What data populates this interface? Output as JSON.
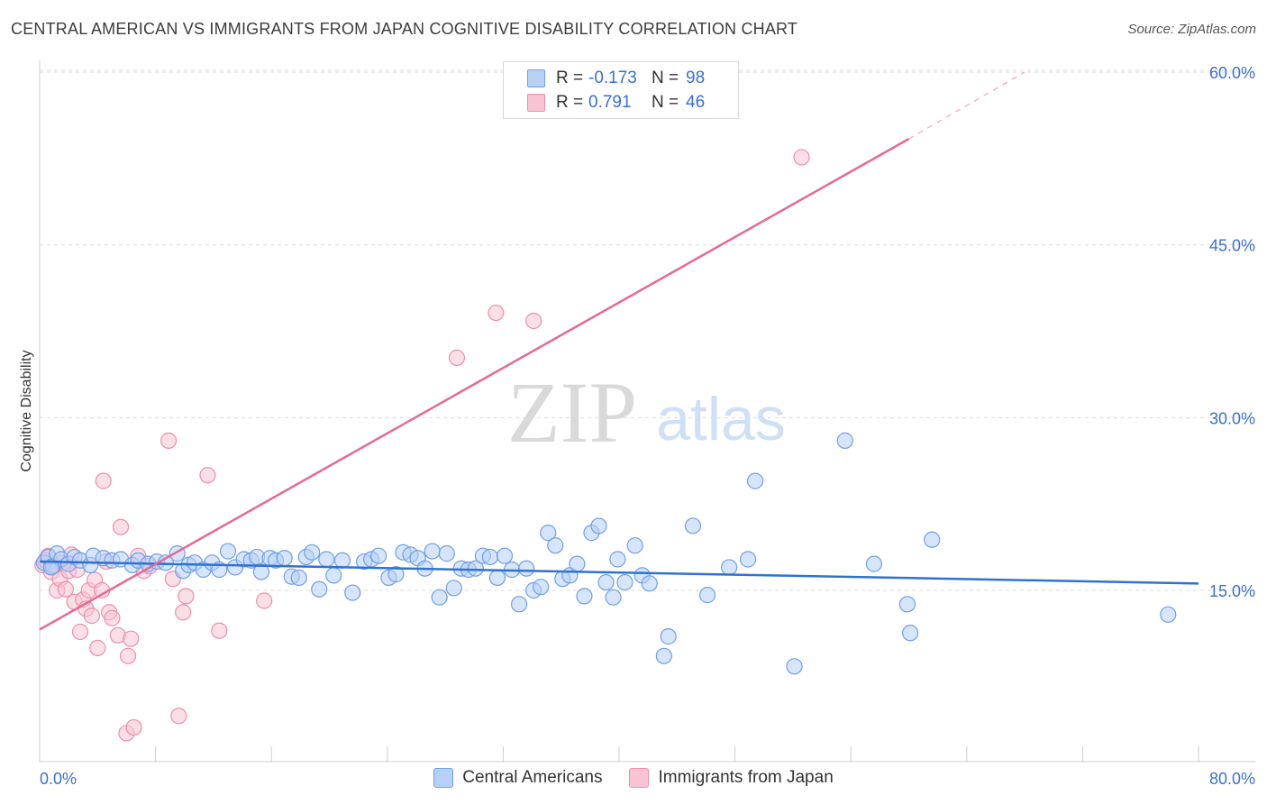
{
  "header": {
    "title": "CENTRAL AMERICAN VS IMMIGRANTS FROM JAPAN COGNITIVE DISABILITY CORRELATION CHART",
    "source": "Source: ZipAtlas.com"
  },
  "watermark": {
    "zip": "ZIP",
    "atlas": "atlas"
  },
  "legend": {
    "rows": [
      {
        "r_label": "R =",
        "r_value": "-0.173",
        "n_label": "N =",
        "n_value": "98"
      },
      {
        "r_label": "R =",
        "r_value": "0.791",
        "n_label": "N =",
        "n_value": "46"
      }
    ]
  },
  "bottom_legend": {
    "items": [
      {
        "label": "Central Americans"
      },
      {
        "label": "Immigrants from Japan"
      }
    ]
  },
  "colors": {
    "blue_fill": "#b7d0f5",
    "blue_stroke": "#6f9fe6",
    "blue_line": "#2f72d0",
    "pink_fill": "#f8c4d4",
    "pink_stroke": "#ec8fab",
    "pink_line": "#e46a92",
    "axis_label": "#3a6fd8",
    "grid": "#dcdcdc"
  },
  "chart_data": {
    "type": "scatter",
    "title": "CENTRAL AMERICAN VS IMMIGRANTS FROM JAPAN COGNITIVE DISABILITY CORRELATION CHART",
    "xlabel": "",
    "ylabel": "Cognitive Disability",
    "xlim": [
      0,
      80
    ],
    "ylim": [
      0,
      64
    ],
    "x_tick_labels": [
      "0.0%",
      "80.0%"
    ],
    "y_ticks": [
      15,
      30,
      45,
      60
    ],
    "y_tick_labels": [
      "15.0%",
      "30.0%",
      "45.0%",
      "60.0%"
    ],
    "grid": true,
    "legend_position": "top-center",
    "series": [
      {
        "name": "Central Americans",
        "color": "#6f9fe6",
        "trend": {
          "x0": 0,
          "y0": 17.5,
          "x1": 80,
          "y1": 15.6
        },
        "points": [
          [
            0.3,
            17.4
          ],
          [
            0.6,
            17.9
          ],
          [
            0.9,
            17.1
          ],
          [
            1.2,
            18.2
          ],
          [
            1.5,
            17.7
          ],
          [
            2.0,
            17.3
          ],
          [
            2.4,
            17.9
          ],
          [
            2.8,
            17.6
          ],
          [
            3.5,
            17.2
          ],
          [
            3.7,
            18.0
          ],
          [
            4.4,
            17.8
          ],
          [
            5.0,
            17.6
          ],
          [
            5.6,
            17.7
          ],
          [
            6.4,
            17.2
          ],
          [
            6.8,
            17.6
          ],
          [
            7.5,
            17.3
          ],
          [
            8.1,
            17.5
          ],
          [
            8.7,
            17.4
          ],
          [
            9.5,
            18.2
          ],
          [
            9.9,
            16.7
          ],
          [
            10.3,
            17.2
          ],
          [
            10.7,
            17.4
          ],
          [
            11.3,
            16.8
          ],
          [
            11.9,
            17.4
          ],
          [
            12.4,
            16.8
          ],
          [
            13.0,
            18.4
          ],
          [
            13.5,
            17.0
          ],
          [
            14.1,
            17.7
          ],
          [
            14.6,
            17.6
          ],
          [
            15.0,
            17.9
          ],
          [
            15.3,
            16.6
          ],
          [
            15.9,
            17.8
          ],
          [
            16.3,
            17.6
          ],
          [
            16.9,
            17.8
          ],
          [
            17.4,
            16.2
          ],
          [
            17.9,
            16.1
          ],
          [
            18.4,
            17.9
          ],
          [
            18.8,
            18.3
          ],
          [
            19.3,
            15.1
          ],
          [
            19.8,
            17.7
          ],
          [
            20.3,
            16.3
          ],
          [
            20.9,
            17.6
          ],
          [
            21.6,
            14.8
          ],
          [
            22.4,
            17.5
          ],
          [
            22.9,
            17.7
          ],
          [
            23.4,
            18.0
          ],
          [
            24.1,
            16.1
          ],
          [
            24.6,
            16.4
          ],
          [
            25.1,
            18.3
          ],
          [
            25.6,
            18.1
          ],
          [
            26.1,
            17.8
          ],
          [
            26.6,
            16.9
          ],
          [
            27.1,
            18.4
          ],
          [
            27.6,
            14.4
          ],
          [
            28.1,
            18.2
          ],
          [
            28.6,
            15.2
          ],
          [
            29.1,
            16.9
          ],
          [
            29.6,
            16.8
          ],
          [
            30.1,
            16.9
          ],
          [
            30.6,
            18.0
          ],
          [
            31.1,
            17.9
          ],
          [
            31.6,
            16.1
          ],
          [
            32.1,
            18.0
          ],
          [
            32.6,
            16.8
          ],
          [
            33.1,
            13.8
          ],
          [
            33.6,
            16.9
          ],
          [
            34.1,
            15.0
          ],
          [
            34.6,
            15.3
          ],
          [
            35.1,
            20.0
          ],
          [
            35.6,
            18.9
          ],
          [
            36.1,
            16.0
          ],
          [
            36.6,
            16.3
          ],
          [
            37.1,
            17.3
          ],
          [
            37.6,
            14.5
          ],
          [
            38.1,
            20.0
          ],
          [
            38.6,
            20.6
          ],
          [
            39.1,
            15.7
          ],
          [
            39.6,
            14.4
          ],
          [
            39.9,
            17.7
          ],
          [
            40.4,
            15.7
          ],
          [
            41.1,
            18.9
          ],
          [
            41.6,
            16.3
          ],
          [
            42.1,
            15.6
          ],
          [
            43.1,
            9.3
          ],
          [
            43.4,
            11.0
          ],
          [
            45.1,
            20.6
          ],
          [
            46.1,
            14.6
          ],
          [
            47.6,
            17.0
          ],
          [
            48.9,
            17.7
          ],
          [
            49.4,
            24.5
          ],
          [
            52.1,
            8.4
          ],
          [
            55.6,
            28.0
          ],
          [
            57.6,
            17.3
          ],
          [
            59.9,
            13.8
          ],
          [
            60.1,
            11.3
          ],
          [
            61.6,
            19.4
          ],
          [
            77.9,
            12.9
          ],
          [
            0.8,
            17.0
          ]
        ]
      },
      {
        "name": "Immigrants from Japan",
        "color": "#ec8fab",
        "trend": {
          "x0": 0,
          "y0": 11.6,
          "x1": 60,
          "y1": 54.2
        },
        "trend_dashed": {
          "x0": 60,
          "y0": 54.2,
          "x1": 68,
          "y1": 60.0
        },
        "points": [
          [
            0.2,
            17.2
          ],
          [
            0.4,
            17.6
          ],
          [
            0.6,
            18.0
          ],
          [
            0.8,
            16.6
          ],
          [
            1.0,
            17.2
          ],
          [
            1.2,
            15.0
          ],
          [
            1.4,
            16.0
          ],
          [
            1.6,
            17.4
          ],
          [
            1.8,
            15.1
          ],
          [
            2.0,
            16.7
          ],
          [
            2.2,
            18.1
          ],
          [
            2.4,
            14.0
          ],
          [
            2.6,
            16.8
          ],
          [
            2.8,
            11.4
          ],
          [
            3.0,
            14.2
          ],
          [
            3.2,
            13.4
          ],
          [
            3.4,
            15.0
          ],
          [
            3.6,
            12.8
          ],
          [
            3.8,
            15.9
          ],
          [
            4.0,
            10.0
          ],
          [
            4.3,
            15.0
          ],
          [
            4.4,
            24.5
          ],
          [
            4.6,
            17.5
          ],
          [
            4.8,
            13.1
          ],
          [
            5.0,
            12.6
          ],
          [
            5.4,
            11.1
          ],
          [
            5.6,
            20.5
          ],
          [
            6.0,
            2.6
          ],
          [
            6.1,
            9.3
          ],
          [
            6.3,
            10.8
          ],
          [
            6.5,
            3.1
          ],
          [
            6.8,
            18.0
          ],
          [
            7.2,
            16.7
          ],
          [
            7.6,
            17.1
          ],
          [
            8.9,
            28.0
          ],
          [
            9.2,
            16.0
          ],
          [
            9.6,
            4.1
          ],
          [
            9.9,
            13.1
          ],
          [
            10.1,
            14.5
          ],
          [
            11.6,
            25.0
          ],
          [
            12.4,
            11.5
          ],
          [
            15.5,
            14.1
          ],
          [
            28.8,
            35.2
          ],
          [
            31.5,
            39.1
          ],
          [
            34.1,
            38.4
          ],
          [
            52.6,
            52.6
          ]
        ]
      }
    ]
  }
}
